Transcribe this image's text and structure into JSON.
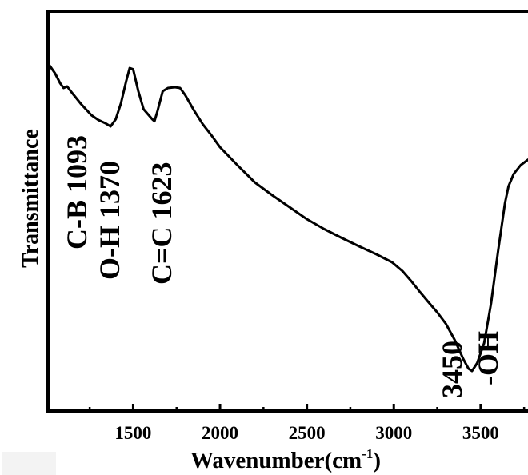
{
  "chart_data": {
    "type": "line",
    "xlabel": "Wavenumber(cm",
    "xlabel_sup": "-1",
    "xlabel_close": ")",
    "ylabel": "Transmittance",
    "xlim": [
      1010,
      3800
    ],
    "ylim": [
      0,
      1
    ],
    "xticks": [
      1500,
      2000,
      2500,
      3000,
      3500
    ],
    "xtick_labels": [
      "1500",
      "2000",
      "2500",
      "3000",
      "3500"
    ],
    "minor_xticks": [
      1250,
      1750,
      2250,
      2750,
      3250,
      3750
    ],
    "grid": false,
    "series": [
      {
        "x": [
          1010,
          1050,
          1080,
          1100,
          1120,
          1150,
          1200,
          1260,
          1300,
          1340,
          1370,
          1400,
          1430,
          1460,
          1480,
          1500,
          1530,
          1560,
          1590,
          1610,
          1623,
          1640,
          1670,
          1700,
          1740,
          1770,
          1800,
          1850,
          1900,
          1950,
          2000,
          2100,
          2200,
          2300,
          2400,
          2500,
          2600,
          2700,
          2800,
          2900,
          2990,
          3050,
          3100,
          3150,
          3200,
          3250,
          3300,
          3350,
          3400,
          3430,
          3450,
          3480,
          3520,
          3560,
          3600,
          3640,
          3660,
          3690,
          3730,
          3770,
          3800
        ],
        "y": [
          0.87,
          0.845,
          0.82,
          0.808,
          0.812,
          0.795,
          0.768,
          0.74,
          0.728,
          0.72,
          0.712,
          0.73,
          0.77,
          0.825,
          0.858,
          0.855,
          0.8,
          0.755,
          0.74,
          0.73,
          0.725,
          0.75,
          0.8,
          0.808,
          0.81,
          0.808,
          0.79,
          0.752,
          0.718,
          0.69,
          0.66,
          0.615,
          0.572,
          0.54,
          0.51,
          0.48,
          0.455,
          0.433,
          0.412,
          0.392,
          0.372,
          0.35,
          0.325,
          0.298,
          0.272,
          0.247,
          0.218,
          0.178,
          0.13,
          0.106,
          0.1,
          0.12,
          0.17,
          0.27,
          0.4,
          0.52,
          0.562,
          0.593,
          0.615,
          0.628,
          0.636
        ]
      }
    ],
    "annotations": [
      {
        "text": "C-B 1093",
        "x": 1093
      },
      {
        "text": "O-H 1370",
        "x": 1370
      },
      {
        "text": "C=C 1623",
        "x": 1623
      },
      {
        "text": "3450",
        "x": 3450
      },
      {
        "text": "-OH",
        "x": 3450
      }
    ]
  }
}
